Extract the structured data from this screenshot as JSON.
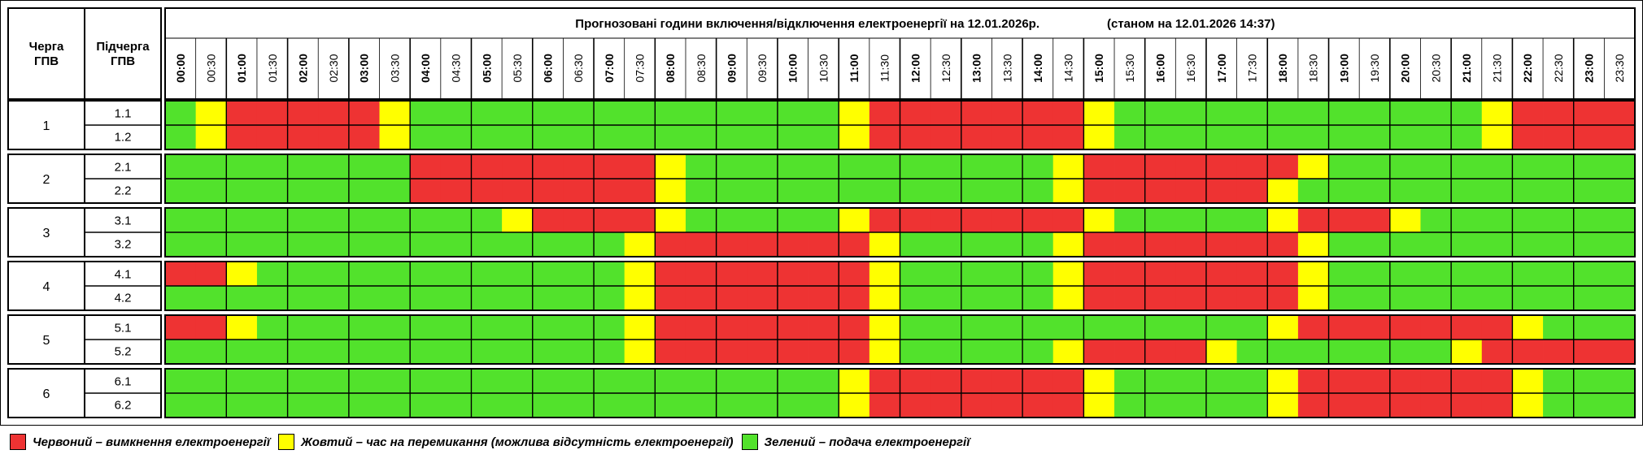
{
  "header": {
    "queue_label": "Черга\nГПВ",
    "subqueue_label": "Підчерга\nГПВ",
    "title": "Прогнозовані години включення/відключення електроенергії на 12.01.2026р.",
    "as_of": "(станом на 12.01.2026 14:37)",
    "times": [
      "00:00",
      "00:30",
      "01:00",
      "01:30",
      "02:00",
      "02:30",
      "03:00",
      "03:30",
      "04:00",
      "04:30",
      "05:00",
      "05:30",
      "06:00",
      "06:30",
      "07:00",
      "07:30",
      "08:00",
      "08:30",
      "09:00",
      "09:30",
      "10:00",
      "10:30",
      "11:00",
      "11:30",
      "12:00",
      "12:30",
      "13:00",
      "13:30",
      "14:00",
      "14:30",
      "15:00",
      "15:30",
      "16:00",
      "16:30",
      "17:00",
      "17:30",
      "18:00",
      "18:30",
      "19:00",
      "19:30",
      "20:00",
      "20:30",
      "21:00",
      "21:30",
      "22:00",
      "22:30",
      "23:00",
      "23:30"
    ]
  },
  "colors": {
    "R": "#ee3333",
    "Y": "#ffff00",
    "G": "#52e22c"
  },
  "groups": [
    {
      "queue": "1",
      "rows": [
        {
          "label": "1.1",
          "cells": "GYRRRRRYGGGGGGGGGGGGGGYRRRRRRRYGGGGGGGGGGGGYRRRR"
        },
        {
          "label": "1.2",
          "cells": "GYRRRRRYGGGGGGGGGGGGGGYRRRRRRRYGGGGGGGGGGGGYRRRR"
        }
      ]
    },
    {
      "queue": "2",
      "rows": [
        {
          "label": "2.1",
          "cells": "GGGGGGGGRRRRRRRRYGGGGGGGGGGGGYRRRRRRRYGGGGGGGGGG"
        },
        {
          "label": "2.2",
          "cells": "GGGGGGGGRRRRRRRRYGGGGGGGGGGGGYRRRRRRYGGGGGGGGGGG"
        }
      ]
    },
    {
      "queue": "3",
      "rows": [
        {
          "label": "3.1",
          "cells": "GGGGGGGGGGGYRRRRYGGGGGYRRRRRRRYGGGGGYRRRYGGGGGGG"
        },
        {
          "label": "3.2",
          "cells": "GGGGGGGGGGGGGGGYRRRRRRRYGGGGGYRRRRRRRYGGGGGGGGGG"
        }
      ]
    },
    {
      "queue": "4",
      "rows": [
        {
          "label": "4.1",
          "cells": "RRYGGGGGGGGGGGGYRRRRRRRYGGGGGYRRRRRRRYGGGGGGGGGG"
        },
        {
          "label": "4.2",
          "cells": "GGGGGGGGGGGGGGGYRRRRRRRYGGGGGYRRRRRRRYGGGGGGGGGG"
        }
      ]
    },
    {
      "queue": "5",
      "rows": [
        {
          "label": "5.1",
          "cells": "RRYGGGGGGGGGGGGYRRRRRRRYGGGGGGGGGGGGYRRRRRRRYGGG"
        },
        {
          "label": "5.2",
          "cells": "GGGGGGGGGGGGGGGYRRRRRRRYGGGGGYRRRRYGGGGGGGYRRRRR"
        }
      ]
    },
    {
      "queue": "6",
      "rows": [
        {
          "label": "6.1",
          "cells": "GGGGGGGGGGGGGGGGGGGGGGYRRRRRRRYGGGGGYRRRRRRRYGGG"
        },
        {
          "label": "6.2",
          "cells": "GGGGGGGGGGGGGGGGGGGGGGYRRRRRRRYGGGGGYRRRRRRRYGGG"
        }
      ]
    }
  ],
  "legend": [
    {
      "color": "#ee3333",
      "text": "Червоний – вимкнення електроенергії"
    },
    {
      "color": "#ffff00",
      "text": "Жовтий – час на перемикання (можлива відсутність електроенергії)"
    },
    {
      "color": "#52e22c",
      "text": "Зелений – подача електроенергії"
    }
  ]
}
